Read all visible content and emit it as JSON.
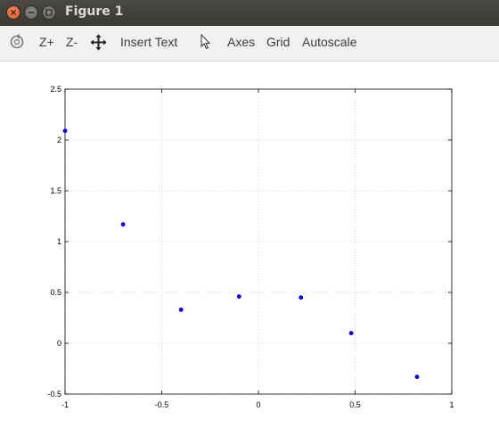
{
  "window": {
    "title": "Figure 1"
  },
  "toolbar": {
    "zoom_in_label": "Z+",
    "zoom_out_label": "Z-",
    "insert_text_label": "Insert Text",
    "axes_label": "Axes",
    "grid_label": "Grid",
    "autoscale_label": "Autoscale"
  },
  "chart_data": {
    "type": "scatter",
    "x": [
      -1.0,
      -0.7,
      -0.4,
      -0.1,
      0.22,
      0.48,
      0.82
    ],
    "y": [
      2.09,
      1.17,
      0.33,
      0.46,
      0.45,
      0.1,
      -0.33
    ],
    "xlim": [
      -1,
      1
    ],
    "ylim": [
      -0.5,
      2.5
    ],
    "xticks": [
      -1,
      -0.5,
      0,
      0.5,
      1
    ],
    "xtick_labels": [
      "-1",
      "-0.5",
      "0",
      "0.5",
      "1"
    ],
    "yticks": [
      -0.5,
      0,
      0.5,
      1,
      1.5,
      2,
      2.5
    ],
    "ytick_labels": [
      "-0.5",
      "0",
      "0.5",
      "1",
      "1.5",
      "2",
      "2.5"
    ],
    "grid": true,
    "marker_color": "#0000ff",
    "title": "",
    "xlabel": "",
    "ylabel": ""
  }
}
